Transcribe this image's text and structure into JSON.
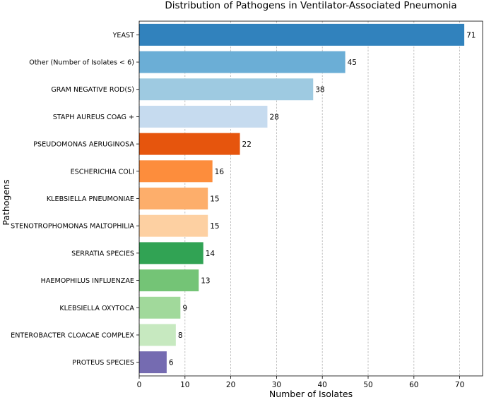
{
  "chart_data": {
    "type": "bar",
    "orientation": "horizontal",
    "title": "Distribution of Pathogens in Ventilator-Associated Pneumonia",
    "xlabel": "Number of Isolates",
    "ylabel": "Pathogens",
    "xlim": [
      0,
      75
    ],
    "xticks": [
      0,
      10,
      20,
      30,
      40,
      50,
      60,
      70
    ],
    "grid": "x-dashed",
    "categories": [
      "YEAST",
      "Other (Number of Isolates < 6)",
      "GRAM NEGATIVE ROD(S)",
      "STAPH AUREUS COAG +",
      "PSEUDOMONAS AERUGINOSA",
      "ESCHERICHIA COLI",
      "KLEBSIELLA PNEUMONIAE",
      "STENOTROPHOMONAS MALTOPHILIA",
      "SERRATIA SPECIES",
      "HAEMOPHILUS INFLUENZAE",
      "KLEBSIELLA OXYTOCA",
      "ENTEROBACTER CLOACAE COMPLEX",
      "PROTEUS SPECIES"
    ],
    "values": [
      71,
      45,
      38,
      28,
      22,
      16,
      15,
      15,
      14,
      13,
      9,
      8,
      6
    ],
    "colors": [
      "#3182bd",
      "#6baed6",
      "#9ecae1",
      "#c6dbef",
      "#e6550d",
      "#fd8d3c",
      "#fdae6b",
      "#fdd0a2",
      "#31a354",
      "#74c476",
      "#a1d99b",
      "#c7e9c0",
      "#756bb1"
    ]
  }
}
